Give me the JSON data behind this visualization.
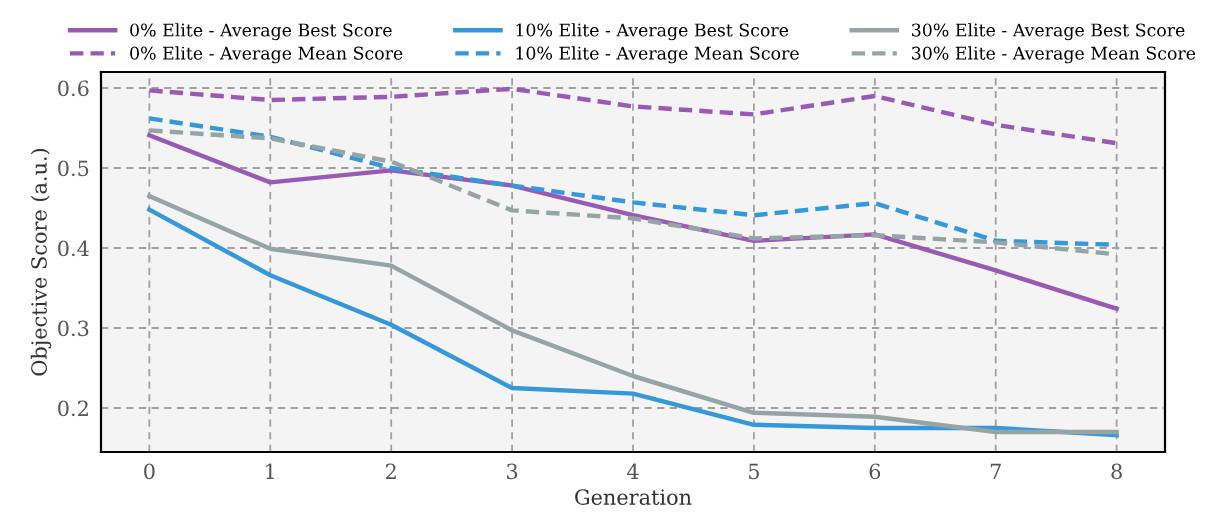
{
  "chart_data": {
    "type": "line",
    "xlabel": "Generation",
    "ylabel": "Objective Score (a.u.)",
    "x": [
      0,
      1,
      2,
      3,
      4,
      5,
      6,
      7,
      8
    ],
    "xlim": [
      -0.4,
      8.4
    ],
    "xticks": [
      0,
      1,
      2,
      3,
      4,
      5,
      6,
      7,
      8
    ],
    "ylim": [
      0.145,
      0.62
    ],
    "yticks": [
      0.2,
      0.3,
      0.4,
      0.5,
      0.6
    ],
    "grid": true,
    "legend": "top",
    "marker": "none",
    "series": [
      {
        "name": "0% Elite - Average Best Score",
        "color": "#9b59b6",
        "line_style": "solid",
        "values": [
          0.541,
          0.482,
          0.497,
          0.478,
          0.441,
          0.409,
          0.417,
          0.372,
          0.324
        ]
      },
      {
        "name": "0% Elite - Average Mean Score",
        "color": "#9b59b6",
        "line_style": "dashed",
        "values": [
          0.597,
          0.585,
          0.589,
          0.599,
          0.577,
          0.567,
          0.59,
          0.554,
          0.531
        ]
      },
      {
        "name": "10% Elite - Average Best Score",
        "color": "#3498db",
        "line_style": "solid",
        "values": [
          0.448,
          0.366,
          0.304,
          0.225,
          0.218,
          0.179,
          0.175,
          0.175,
          0.166
        ]
      },
      {
        "name": "10% Elite - Average Mean Score",
        "color": "#3498db",
        "line_style": "dashed",
        "values": [
          0.562,
          0.539,
          0.5,
          0.478,
          0.457,
          0.441,
          0.456,
          0.409,
          0.404
        ]
      },
      {
        "name": "30% Elite - Average Best Score",
        "color": "#95a5a6",
        "line_style": "solid",
        "values": [
          0.465,
          0.399,
          0.378,
          0.297,
          0.24,
          0.194,
          0.189,
          0.17,
          0.17
        ]
      },
      {
        "name": "30% Elite - Average Mean Score",
        "color": "#95a5a6",
        "line_style": "dashed",
        "values": [
          0.547,
          0.537,
          0.508,
          0.447,
          0.437,
          0.412,
          0.416,
          0.407,
          0.392
        ]
      }
    ]
  }
}
